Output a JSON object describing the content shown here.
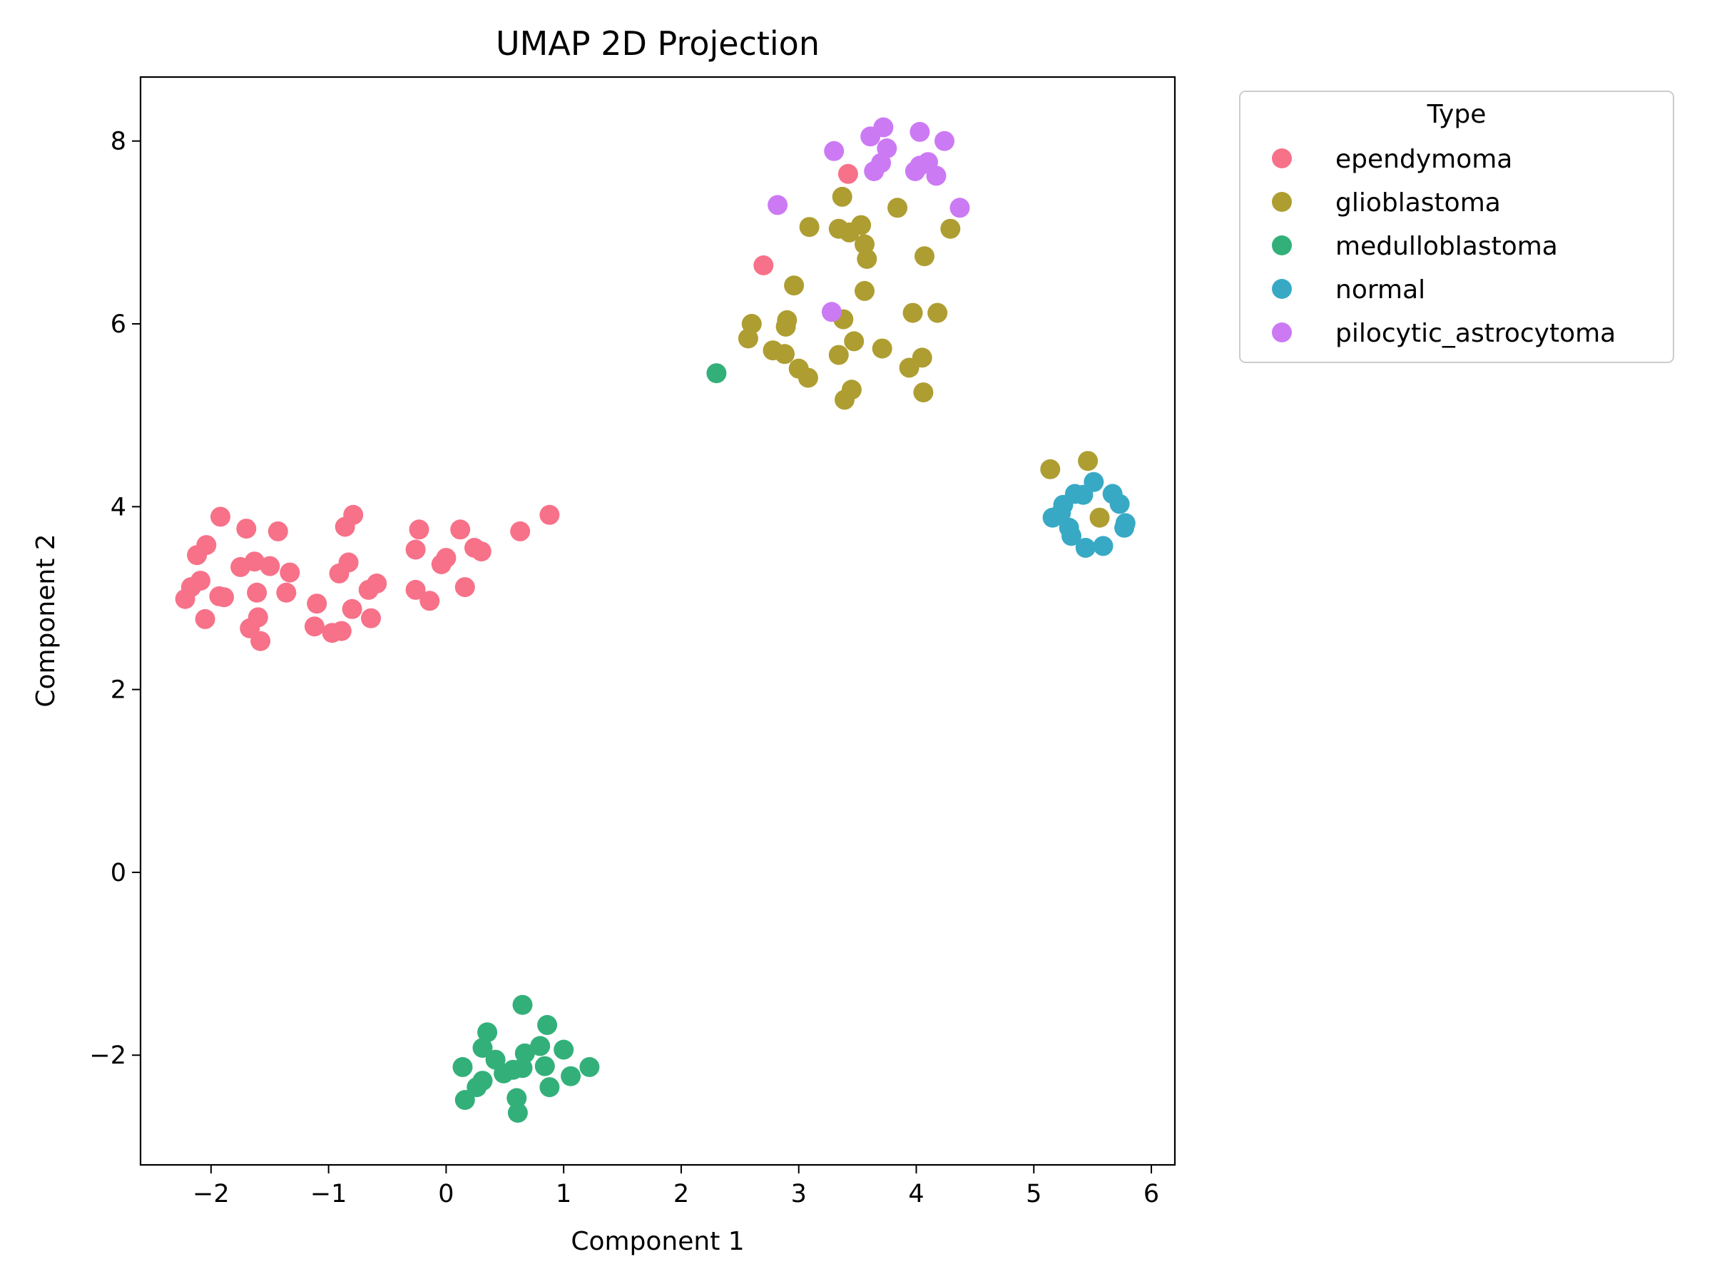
{
  "chart_data": {
    "type": "scatter",
    "title": "UMAP 2D Projection",
    "xlabel": "Component 1",
    "ylabel": "Component 2",
    "xlim": [
      -2.6,
      6.2
    ],
    "ylim": [
      -3.2,
      8.7
    ],
    "xticks": [
      -2,
      -1,
      0,
      1,
      2,
      3,
      4,
      5,
      6
    ],
    "xtick_labels": [
      "−2",
      "−1",
      "0",
      "1",
      "2",
      "3",
      "4",
      "5",
      "6"
    ],
    "yticks": [
      -2,
      0,
      2,
      4,
      6,
      8
    ],
    "ytick_labels": [
      "−2",
      "0",
      "2",
      "4",
      "6",
      "8"
    ],
    "grid": false,
    "legend": {
      "title": "Type",
      "placement": "outside-upper-right"
    },
    "series": [
      {
        "name": "ependymoma",
        "color": "#f77189",
        "points": [
          [
            -2.22,
            2.99
          ],
          [
            -2.17,
            3.12
          ],
          [
            -2.12,
            3.47
          ],
          [
            -2.09,
            3.19
          ],
          [
            -2.04,
            3.58
          ],
          [
            -2.05,
            2.77
          ],
          [
            -1.92,
            3.89
          ],
          [
            -1.93,
            3.02
          ],
          [
            -1.89,
            3.01
          ],
          [
            -1.75,
            3.34
          ],
          [
            -1.7,
            3.76
          ],
          [
            -1.67,
            2.67
          ],
          [
            -1.63,
            3.4
          ],
          [
            -1.61,
            3.06
          ],
          [
            -1.6,
            2.79
          ],
          [
            -1.58,
            2.53
          ],
          [
            -1.5,
            3.35
          ],
          [
            -1.43,
            3.73
          ],
          [
            -1.36,
            3.06
          ],
          [
            -1.33,
            3.28
          ],
          [
            -1.12,
            2.69
          ],
          [
            -1.1,
            2.94
          ],
          [
            -0.97,
            2.62
          ],
          [
            -0.91,
            3.27
          ],
          [
            -0.89,
            2.64
          ],
          [
            -0.86,
            3.78
          ],
          [
            -0.83,
            3.39
          ],
          [
            -0.79,
            3.91
          ],
          [
            -0.8,
            2.88
          ],
          [
            -0.66,
            3.09
          ],
          [
            -0.64,
            2.78
          ],
          [
            -0.59,
            3.16
          ],
          [
            -0.26,
            3.09
          ],
          [
            -0.26,
            3.53
          ],
          [
            -0.23,
            3.75
          ],
          [
            -0.14,
            2.97
          ],
          [
            -0.04,
            3.37
          ],
          [
            0.0,
            3.44
          ],
          [
            0.12,
            3.75
          ],
          [
            0.16,
            3.12
          ],
          [
            0.24,
            3.55
          ],
          [
            0.3,
            3.51
          ],
          [
            0.63,
            3.73
          ],
          [
            0.88,
            3.91
          ],
          [
            2.7,
            6.64
          ],
          [
            3.42,
            7.64
          ]
        ]
      },
      {
        "name": "glioblastoma",
        "color": "#ae9d31",
        "points": [
          [
            2.57,
            5.84
          ],
          [
            2.6,
            6.0
          ],
          [
            2.78,
            5.71
          ],
          [
            2.88,
            5.67
          ],
          [
            2.89,
            5.97
          ],
          [
            2.9,
            6.04
          ],
          [
            2.96,
            6.42
          ],
          [
            3.0,
            5.51
          ],
          [
            3.08,
            5.41
          ],
          [
            3.09,
            7.06
          ],
          [
            3.34,
            7.04
          ],
          [
            3.34,
            5.66
          ],
          [
            3.37,
            7.39
          ],
          [
            3.38,
            6.05
          ],
          [
            3.39,
            5.17
          ],
          [
            3.43,
            7.0
          ],
          [
            3.45,
            5.28
          ],
          [
            3.47,
            5.81
          ],
          [
            3.53,
            7.08
          ],
          [
            3.56,
            6.36
          ],
          [
            3.56,
            6.87
          ],
          [
            3.58,
            6.71
          ],
          [
            3.71,
            5.73
          ],
          [
            3.84,
            7.27
          ],
          [
            3.94,
            5.52
          ],
          [
            3.97,
            6.12
          ],
          [
            4.05,
            5.63
          ],
          [
            4.06,
            5.25
          ],
          [
            4.07,
            6.74
          ],
          [
            4.18,
            6.12
          ],
          [
            4.29,
            7.04
          ],
          [
            5.14,
            4.41
          ],
          [
            5.46,
            4.5
          ],
          [
            5.56,
            3.88
          ]
        ]
      },
      {
        "name": "medulloblastoma",
        "color": "#33b07a",
        "points": [
          [
            2.3,
            5.46
          ],
          [
            0.14,
            -2.13
          ],
          [
            0.16,
            -2.49
          ],
          [
            0.26,
            -2.35
          ],
          [
            0.31,
            -2.28
          ],
          [
            0.31,
            -1.92
          ],
          [
            0.35,
            -1.75
          ],
          [
            0.42,
            -2.05
          ],
          [
            0.49,
            -2.2
          ],
          [
            0.57,
            -2.16
          ],
          [
            0.6,
            -2.47
          ],
          [
            0.61,
            -2.63
          ],
          [
            0.65,
            -1.45
          ],
          [
            0.65,
            -2.14
          ],
          [
            0.67,
            -1.98
          ],
          [
            0.8,
            -1.9
          ],
          [
            0.84,
            -2.12
          ],
          [
            0.86,
            -1.67
          ],
          [
            0.88,
            -2.35
          ],
          [
            1.0,
            -1.94
          ],
          [
            1.06,
            -2.23
          ],
          [
            1.22,
            -2.13
          ]
        ]
      },
      {
        "name": "normal",
        "color": "#38a9c5",
        "points": [
          [
            5.16,
            3.88
          ],
          [
            5.23,
            3.93
          ],
          [
            5.25,
            4.02
          ],
          [
            5.3,
            3.77
          ],
          [
            5.32,
            3.68
          ],
          [
            5.35,
            4.14
          ],
          [
            5.42,
            4.13
          ],
          [
            5.44,
            3.55
          ],
          [
            5.51,
            4.27
          ],
          [
            5.59,
            3.57
          ],
          [
            5.67,
            4.14
          ],
          [
            5.73,
            4.03
          ],
          [
            5.78,
            3.82
          ],
          [
            5.77,
            3.77
          ]
        ]
      },
      {
        "name": "pilocytic_astrocytoma",
        "color": "#cc7af4",
        "points": [
          [
            2.82,
            7.3
          ],
          [
            3.28,
            6.13
          ],
          [
            3.3,
            7.89
          ],
          [
            3.61,
            8.05
          ],
          [
            3.64,
            7.67
          ],
          [
            3.7,
            7.76
          ],
          [
            3.72,
            8.15
          ],
          [
            3.75,
            7.92
          ],
          [
            3.99,
            7.67
          ],
          [
            4.03,
            8.1
          ],
          [
            4.03,
            7.73
          ],
          [
            4.1,
            7.77
          ],
          [
            4.17,
            7.62
          ],
          [
            4.24,
            8.0
          ],
          [
            4.37,
            7.27
          ]
        ]
      }
    ]
  }
}
